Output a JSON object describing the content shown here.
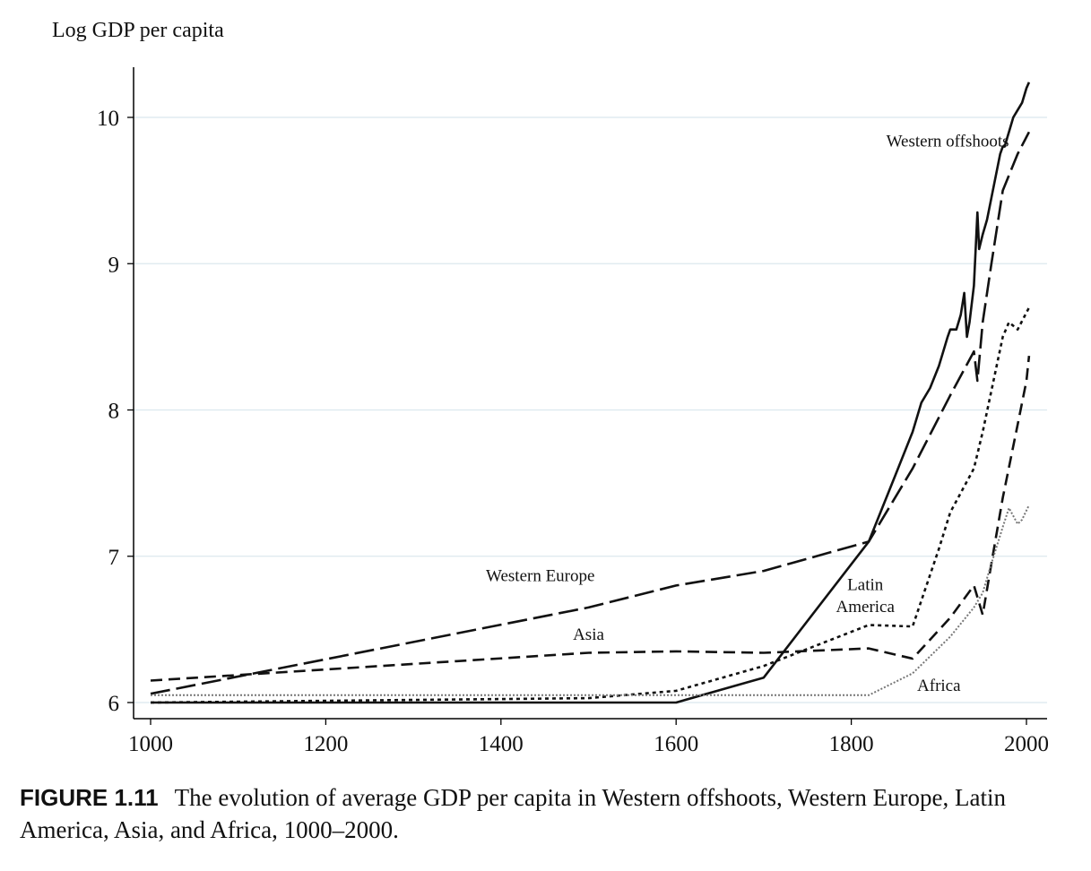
{
  "chart_data": {
    "type": "line",
    "title": "",
    "xlabel": "",
    "ylabel": "Log GDP per capita",
    "xlim": [
      980,
      2020
    ],
    "ylim": [
      5.9,
      10.35
    ],
    "xticks": [
      1000,
      1200,
      1400,
      1600,
      1800,
      2000
    ],
    "yticks": [
      6,
      7,
      8,
      9,
      10
    ],
    "xtick_labels": [
      "1000",
      "1200",
      "1400",
      "1600",
      "1800",
      "2000"
    ],
    "ytick_labels": [
      "6",
      "7",
      "8",
      "9",
      "10"
    ],
    "grid": "horizontal",
    "series": [
      {
        "name": "Western offshoots",
        "style": "solid",
        "x": [
          1000,
          1600,
          1700,
          1820,
          1850,
          1870,
          1880,
          1890,
          1900,
          1905,
          1910,
          1913,
          1920,
          1925,
          1929,
          1932,
          1935,
          1940,
          1944,
          1946,
          1950,
          1955,
          1960,
          1965,
          1970,
          1973,
          1975,
          1980,
          1985,
          1990,
          1995,
          2000,
          2003
        ],
        "y": [
          6.0,
          6.0,
          6.17,
          7.1,
          7.55,
          7.85,
          8.05,
          8.15,
          8.3,
          8.4,
          8.5,
          8.55,
          8.55,
          8.65,
          8.8,
          8.5,
          8.6,
          8.85,
          9.35,
          9.1,
          9.2,
          9.3,
          9.45,
          9.6,
          9.75,
          9.8,
          9.8,
          9.9,
          10.0,
          10.05,
          10.1,
          10.2,
          10.24
        ]
      },
      {
        "name": "Western Europe",
        "style": "longdash",
        "x": [
          1000,
          1500,
          1600,
          1700,
          1820,
          1870,
          1913,
          1940,
          1944,
          1950,
          1960,
          1973,
          1990,
          2003
        ],
        "y": [
          6.06,
          6.65,
          6.8,
          6.9,
          7.1,
          7.6,
          8.1,
          8.4,
          8.2,
          8.6,
          9.0,
          9.5,
          9.75,
          9.9
        ]
      },
      {
        "name": "Latin America",
        "style": "dotted",
        "x": [
          1000,
          1500,
          1600,
          1700,
          1820,
          1870,
          1900,
          1913,
          1940,
          1950,
          1973,
          1980,
          1990,
          2003
        ],
        "y": [
          6.0,
          6.03,
          6.08,
          6.25,
          6.53,
          6.52,
          7.05,
          7.3,
          7.6,
          7.85,
          8.5,
          8.6,
          8.55,
          8.7
        ]
      },
      {
        "name": "Asia",
        "style": "dash",
        "x": [
          1000,
          1500,
          1600,
          1700,
          1820,
          1870,
          1913,
          1940,
          1945,
          1950,
          1960,
          1973,
          1990,
          2000,
          2003
        ],
        "y": [
          6.15,
          6.34,
          6.35,
          6.34,
          6.37,
          6.3,
          6.58,
          6.8,
          6.7,
          6.6,
          6.95,
          7.4,
          7.9,
          8.2,
          8.37
        ]
      },
      {
        "name": "Africa",
        "style": "dotted-light",
        "x": [
          1000,
          1500,
          1600,
          1700,
          1820,
          1870,
          1913,
          1940,
          1950,
          1960,
          1973,
          1980,
          1990,
          1995,
          2003
        ],
        "y": [
          6.05,
          6.05,
          6.05,
          6.05,
          6.05,
          6.2,
          6.45,
          6.65,
          6.75,
          6.95,
          7.2,
          7.33,
          7.22,
          7.25,
          7.35
        ]
      }
    ],
    "annotations": [
      {
        "text": "Western offshoots",
        "x": 1910,
        "y": 9.8
      },
      {
        "text": "Western Europe",
        "x": 1445,
        "y": 6.83
      },
      {
        "text": "Latin",
        "x": 1816,
        "y": 6.77
      },
      {
        "text": "America",
        "x": 1816,
        "y": 6.62
      },
      {
        "text": "Asia",
        "x": 1500,
        "y": 6.43
      },
      {
        "text": "Africa",
        "x": 1900,
        "y": 6.08
      }
    ]
  },
  "caption": {
    "label": "FIGURE 1.11",
    "text": "The evolution of average GDP per capita in Western offshoots, Western Europe, Latin America, Asia, and Africa, 1000–2000."
  }
}
